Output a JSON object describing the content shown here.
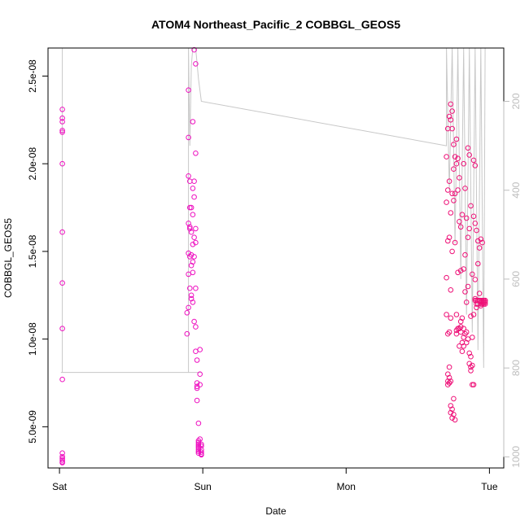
{
  "chart_data": {
    "type": "scatter",
    "title": "ATOM4 Northeast_Pacific_2 COBBGL_GEOS5",
    "xlabel": "Date",
    "ylabel": "COBBGL_GEOS5",
    "x_ticks": [
      "Sat",
      "Sun",
      "Mon",
      "Tue"
    ],
    "x_tick_pos": [
      0,
      1,
      2,
      3
    ],
    "xlim": [
      -0.08,
      3.1
    ],
    "y_ticks": [
      "5.0e-09",
      "1.0e-08",
      "1.5e-08",
      "2.0e-08",
      "2.5e-08"
    ],
    "y_tick_values": [
      5e-09,
      1e-08,
      1.5e-08,
      2e-08,
      2.5e-08
    ],
    "ylim": [
      2.65e-09,
      2.66e-08
    ],
    "right_axis": {
      "label": "",
      "ticks": [
        "200",
        "400",
        "600",
        "800",
        "1000"
      ],
      "tick_values": [
        200,
        400,
        600,
        800,
        1000
      ],
      "lim": [
        80,
        1025
      ],
      "inverted": true,
      "color": "#bdbdbd"
    },
    "point_color": "#ee10c0",
    "point_color_alt": "#ee1077",
    "line_color": "#c8c8c8",
    "series": [
      {
        "name": "",
        "kind": "points",
        "x": [
          0.02,
          0.02,
          0.02,
          0.02,
          0.02,
          0.02,
          0.02,
          0.02,
          0.02,
          0.02,
          0.02,
          0.02,
          0.02,
          0.02,
          0.02,
          0.02,
          0.89,
          0.89,
          0.9,
          0.9,
          0.9,
          0.9,
          0.9,
          0.9,
          0.9,
          0.91,
          0.91,
          0.91,
          0.91,
          0.91,
          0.91,
          0.92,
          0.92,
          0.92,
          0.92,
          0.92,
          0.92,
          0.93,
          0.93,
          0.93,
          0.93,
          0.93,
          0.93,
          0.93,
          0.94,
          0.94,
          0.94,
          0.94,
          0.94,
          0.94,
          0.95,
          0.95,
          0.95,
          0.95,
          0.95,
          0.95,
          0.95,
          0.96,
          0.96,
          0.96,
          0.96,
          0.96,
          0.97,
          0.97,
          0.97,
          0.97,
          0.97,
          0.97,
          0.97,
          0.97,
          0.97,
          0.98,
          0.98,
          0.98,
          0.98,
          0.99,
          0.99,
          0.99,
          0.99,
          0.99,
          0.99
        ],
        "y": [
          2.31e-08,
          2.26e-08,
          2.24e-08,
          2.19e-08,
          2.18e-08,
          2e-08,
          1.61e-08,
          1.32e-08,
          1.06e-08,
          7.7e-09,
          3.5e-09,
          3.3e-09,
          3.2e-09,
          3.1e-09,
          3e-09,
          2.95e-09,
          1.03e-08,
          1.15e-08,
          1.66e-08,
          1.93e-08,
          2.15e-08,
          2.42e-08,
          1.18e-08,
          1.37e-08,
          1.49e-08,
          1.64e-08,
          1.9e-08,
          1.75e-08,
          1.63e-08,
          1.29e-08,
          1.47e-08,
          1.61e-08,
          1.42e-08,
          1.25e-08,
          1.23e-08,
          1.75e-08,
          1.48e-08,
          2.24e-08,
          1.86e-08,
          1.54e-08,
          1.44e-08,
          1.21e-08,
          1.38e-08,
          1.71e-08,
          2.65e-08,
          1.9e-08,
          1.81e-08,
          1.58e-08,
          1.47e-08,
          1.1e-08,
          2.57e-08,
          2.06e-08,
          1.63e-08,
          1.55e-08,
          1.29e-08,
          1.07e-08,
          9.3e-09,
          8.8e-09,
          7.5e-09,
          7.3e-09,
          7.2e-09,
          6.5e-09,
          5.2e-09,
          4.2e-09,
          4.1e-09,
          4e-09,
          3.9e-09,
          3.8e-09,
          3.7e-09,
          3.6e-09,
          3.5e-09,
          9.4e-09,
          8e-09,
          7.4e-09,
          4.3e-09,
          3.4e-09,
          4e-09,
          3.9e-09,
          3.7e-09,
          3.55e-09,
          3.45e-09
        ]
      },
      {
        "name": "",
        "kind": "points",
        "x": [
          2.7,
          2.7,
          2.7,
          2.7,
          2.71,
          2.71,
          2.71,
          2.71,
          2.71,
          2.71,
          2.71,
          2.72,
          2.72,
          2.72,
          2.72,
          2.72,
          2.72,
          2.72,
          2.73,
          2.73,
          2.73,
          2.73,
          2.73,
          2.73,
          2.73,
          2.73,
          2.74,
          2.74,
          2.74,
          2.74,
          2.74,
          2.74,
          2.75,
          2.75,
          2.75,
          2.75,
          2.75,
          2.76,
          2.76,
          2.76,
          2.76,
          2.77,
          2.77,
          2.77,
          2.77,
          2.77,
          2.78,
          2.78,
          2.78,
          2.78,
          2.79,
          2.79,
          2.79,
          2.79,
          2.8,
          2.8,
          2.8,
          2.8,
          2.8,
          2.81,
          2.81,
          2.81,
          2.81,
          2.82,
          2.82,
          2.82,
          2.82,
          2.82,
          2.83,
          2.83,
          2.83,
          2.83,
          2.84,
          2.84,
          2.84,
          2.84,
          2.85,
          2.85,
          2.85,
          2.85,
          2.86,
          2.86,
          2.86,
          2.86,
          2.87,
          2.87,
          2.87,
          2.87,
          2.87,
          2.88,
          2.88,
          2.88,
          2.88,
          2.89,
          2.89,
          2.89,
          2.89,
          2.9,
          2.9,
          2.9,
          2.9,
          2.9,
          2.91,
          2.91,
          2.91,
          2.91,
          2.92,
          2.92,
          2.92,
          2.92,
          2.93,
          2.93,
          2.93,
          2.93,
          2.94,
          2.94,
          2.94,
          2.94,
          2.94,
          2.95,
          2.95,
          2.95,
          2.95,
          2.96,
          2.96,
          2.96,
          2.96,
          2.97,
          2.97,
          2.97,
          2.97
        ],
        "y": [
          2.04e-08,
          1.78e-08,
          1.35e-08,
          1.14e-08,
          2.2e-08,
          1.85e-08,
          1.56e-08,
          1.03e-08,
          8e-09,
          7.6e-09,
          7.4e-09,
          2.27e-08,
          1.9e-08,
          1.58e-08,
          1.04e-08,
          8.4e-09,
          7.8e-09,
          7.5e-09,
          2.34e-08,
          2.25e-08,
          1.72e-08,
          1.28e-08,
          1.12e-08,
          7.6e-09,
          6.2e-09,
          5.8e-09,
          2.3e-08,
          2.2e-08,
          1.83e-08,
          1.5e-08,
          6e-09,
          5.5e-09,
          2.11e-08,
          1.97e-08,
          1.79e-08,
          6.6e-09,
          5.7e-09,
          2.04e-08,
          1.83e-08,
          1.55e-08,
          5.4e-09,
          2.14e-08,
          2e-08,
          1.14e-08,
          1.03e-08,
          1.05e-08,
          2.03e-08,
          1.85e-08,
          1.38e-08,
          1.06e-08,
          1.92e-08,
          1.67e-08,
          1.06e-08,
          9.6e-09,
          1.64e-08,
          1.39e-08,
          1.1e-08,
          1.04e-08,
          1.07e-08,
          1.71e-08,
          1.12e-08,
          9.8e-09,
          9.3e-09,
          2e-08,
          1.4e-08,
          1.06e-08,
          1.01e-08,
          9.6e-09,
          1.86e-08,
          1.48e-08,
          1.27e-08,
          1.03e-08,
          1.69e-08,
          1.21e-08,
          1.04e-08,
          9.8e-09,
          2.09e-08,
          1.58e-08,
          1.3e-08,
          1e-08,
          2.05e-08,
          1.63e-08,
          9.2e-09,
          8.6e-09,
          1.76e-08,
          1.13e-08,
          9e-09,
          8.2e-09,
          8.4e-09,
          1.37e-08,
          1.01e-08,
          8.5e-09,
          7.4e-09,
          2.02e-08,
          1.7e-08,
          1.14e-08,
          7.4e-09,
          1.99e-08,
          1.66e-08,
          1.34e-08,
          1.23e-08,
          1.22e-08,
          1.62e-08,
          1.22e-08,
          1.2e-08,
          1.18e-08,
          1.56e-08,
          1.43e-08,
          1.22e-08,
          1.2e-08,
          1.52e-08,
          1.26e-08,
          1.22e-08,
          1.22e-08,
          1.57e-08,
          1.22e-08,
          1.2e-08,
          1.19e-08,
          1.21e-08,
          1.55e-08,
          1.22e-08,
          1.21e-08,
          1.2e-08,
          1.22e-08,
          1.21e-08,
          1.22e-08,
          1.2e-08,
          1.22e-08,
          1.21e-08,
          1.22e-08,
          1.2e-08
        ]
      },
      {
        "name": "",
        "kind": "pressure-line",
        "axis": "right",
        "x": [
          0.02,
          0.02,
          0.02,
          0.01,
          0.02,
          0.45,
          0.99,
          0.96,
          0.9,
          0.9,
          0.91,
          0.92,
          0.93,
          0.95,
          0.97,
          0.99,
          2.7,
          2.7,
          2.72,
          2.74,
          2.76,
          2.78,
          2.8,
          2.82,
          2.84,
          2.86,
          2.88,
          2.9,
          2.92,
          2.94,
          2.96,
          2.97,
          2.98,
          3.0
        ],
        "y": [
          80,
          810,
          810,
          810,
          810,
          810,
          810,
          810,
          810,
          80,
          300,
          120,
          80,
          80,
          150,
          200,
          300,
          80,
          400,
          80,
          520,
          80,
          600,
          80,
          680,
          80,
          720,
          80,
          760,
          80,
          800,
          80,
          80,
          80
        ]
      }
    ],
    "grid": false,
    "legend": "none"
  }
}
